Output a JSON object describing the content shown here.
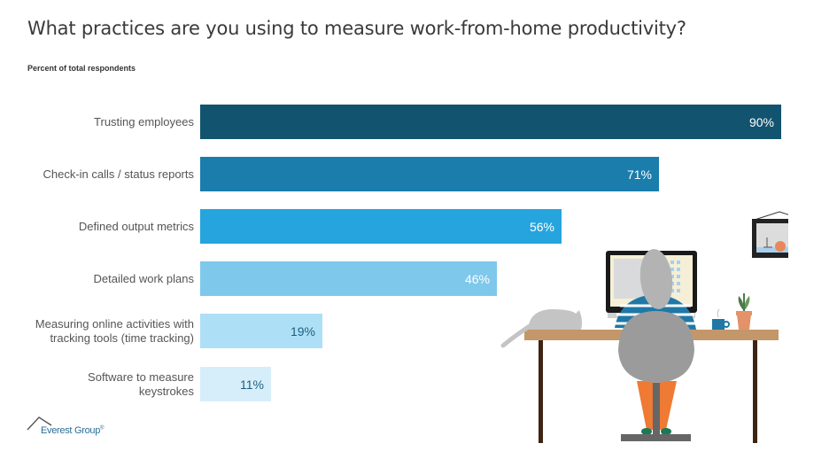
{
  "header": {
    "title": "What practices are you using to measure work-from-home productivity?",
    "subtitle": "Percent of total respondents"
  },
  "logo": {
    "text": "Everest Group",
    "mark": "®"
  },
  "chart_data": {
    "type": "bar",
    "orientation": "horizontal",
    "title": "What practices are you using to measure work-from-home productivity?",
    "subtitle": "Percent of total respondents",
    "xlabel": "",
    "ylabel": "",
    "xlim": [
      0,
      100
    ],
    "grid": false,
    "legend": null,
    "categories": [
      "Trusting employees",
      "Check-in calls / status reports",
      "Defined output metrics",
      "Detailed work plans",
      "Measuring online activities with tracking tools (time tracking)",
      "Software to measure keystrokes"
    ],
    "values": [
      90,
      71,
      56,
      46,
      19,
      11
    ],
    "value_labels": [
      "90%",
      "71%",
      "56%",
      "46%",
      "19%",
      "11%"
    ],
    "colors": [
      "#12536f",
      "#1a7dab",
      "#25a4dd",
      "#7ec8ec",
      "#ade0f6",
      "#d6eefa"
    ],
    "label_colors": [
      "#ffffff",
      "#ffffff",
      "#ffffff",
      "#ffffff",
      "#1f5f80",
      "#1f5f80"
    ]
  },
  "rows": [
    {
      "label": "Trusting employees",
      "value": "90%"
    },
    {
      "label": "Check-in calls / status reports",
      "value": "71%"
    },
    {
      "label": "Defined output metrics",
      "value": "56%"
    },
    {
      "label": "Detailed work plans",
      "value": "46%"
    },
    {
      "label": "Measuring online activities with tracking tools (time tracking)",
      "value": "19%"
    },
    {
      "label": "Software to measure keystrokes",
      "value": "11%"
    }
  ],
  "illustration": {
    "description": "person working at desk with computer, cat, plant, mug, framed picture"
  }
}
